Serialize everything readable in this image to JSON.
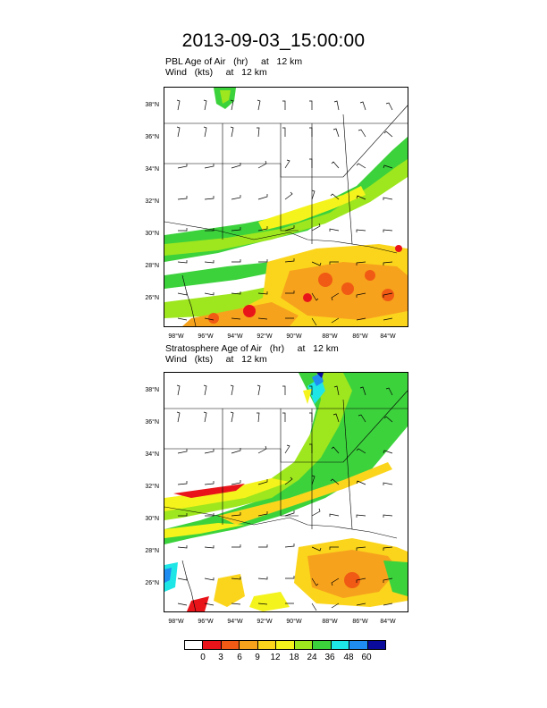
{
  "title": "2013-09-03_15:00:00",
  "panels": [
    {
      "id": "pbl",
      "title_line1": "PBL Age of Air   (hr)     at   12 km",
      "title_line2": "Wind   (kts)     at   12 km",
      "lat_labels": [
        "38°N",
        "36°N",
        "34°N",
        "32°N",
        "30°N",
        "28°N",
        "26°N"
      ],
      "lon_labels": [
        "98°W",
        "96°W",
        "94°W",
        "92°W",
        "90°W",
        "88°W",
        "86°W",
        "84°W"
      ]
    },
    {
      "id": "stratosphere",
      "title_line1": "Stratosphere Age of Air   (hr)     at   12 km",
      "title_line2": "Wind   (kts)     at   12 km",
      "lat_labels": [
        "38°N",
        "36°N",
        "34°N",
        "32°N",
        "30°N",
        "28°N",
        "26°N"
      ],
      "lon_labels": [
        "98°W",
        "96°W",
        "94°W",
        "92°W",
        "90°W",
        "88°W",
        "86°W",
        "84°W"
      ]
    }
  ],
  "colorbar": {
    "labels": [
      "0",
      "3",
      "6",
      "9",
      "12",
      "18",
      "24",
      "36",
      "48",
      "60"
    ],
    "colors": [
      "#ffffff",
      "#e8141a",
      "#f05a14",
      "#f7a21c",
      "#fbd51c",
      "#f4f41c",
      "#9ee61e",
      "#3cd23c",
      "#1ee6e6",
      "#1e8cf0",
      "#0a0a9b"
    ]
  }
}
